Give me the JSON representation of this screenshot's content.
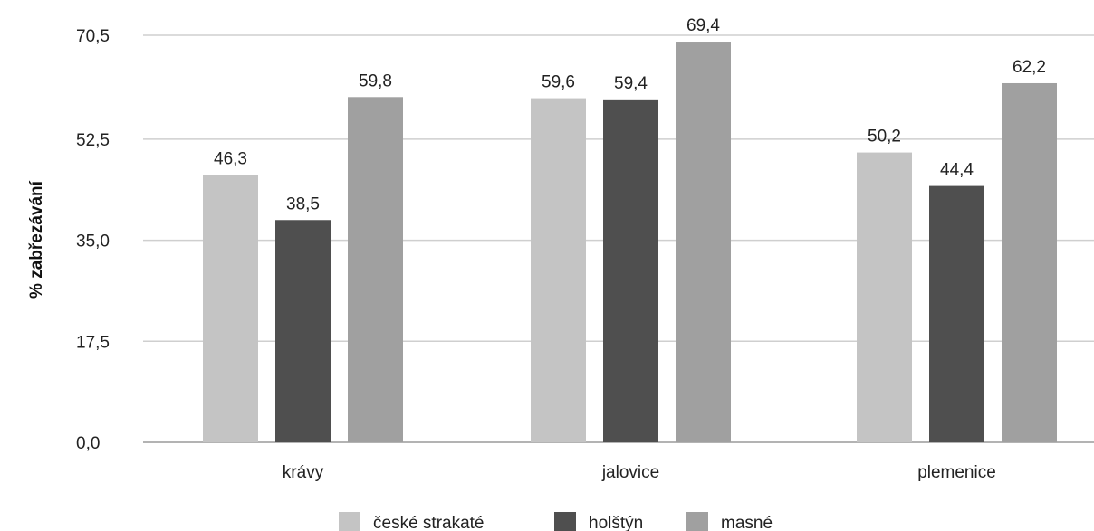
{
  "chart_data": {
    "type": "bar",
    "categories": [
      "krávy",
      "jalovice",
      "plemenice"
    ],
    "series": [
      {
        "name": "české strakaté",
        "color": "#c4c4c4",
        "values": [
          46.3,
          59.6,
          50.2
        ],
        "labels": [
          "46,3",
          "59,6",
          "50,2"
        ]
      },
      {
        "name": "holštýn",
        "color": "#4f4f4f",
        "values": [
          38.5,
          59.4,
          44.4
        ],
        "labels": [
          "38,5",
          "59,4",
          "44,4"
        ]
      },
      {
        "name": "masné",
        "color": "#a0a0a0",
        "values": [
          59.8,
          69.4,
          62.2
        ],
        "labels": [
          "59,8",
          "69,4",
          "62,2"
        ]
      }
    ],
    "ylabel": "% zabřezávání",
    "xlabel": "",
    "ylim": [
      0,
      70.5
    ],
    "yticks": [
      0,
      17.5,
      35.0,
      52.5,
      70.5
    ],
    "ytick_labels": [
      "0,0",
      "17,5",
      "35,0",
      "52,5",
      "70,5"
    ],
    "grid": true,
    "legend_position": "bottom"
  }
}
